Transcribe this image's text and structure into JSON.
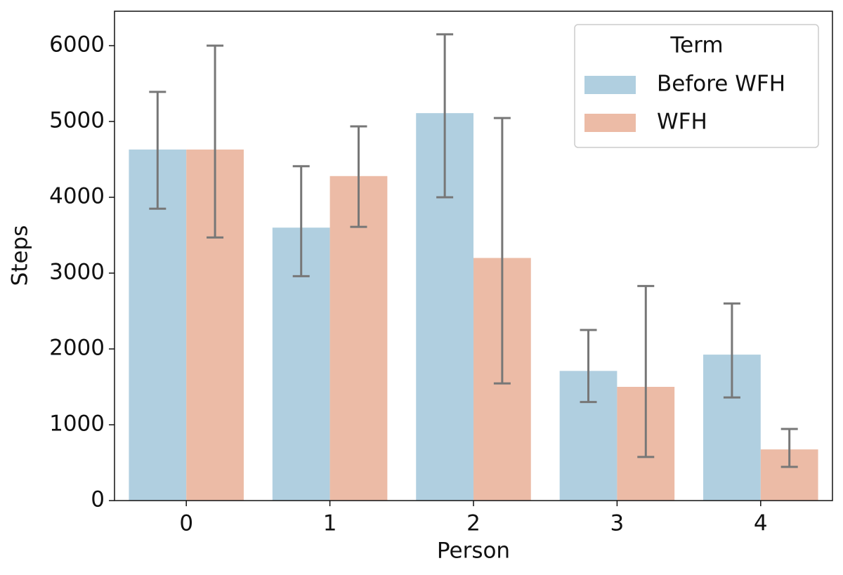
{
  "chart_data": {
    "type": "bar",
    "x_label": "Person",
    "y_label": "Steps",
    "categories": [
      "0",
      "1",
      "2",
      "3",
      "4"
    ],
    "series": [
      {
        "name": "Before WFH",
        "color": "#b0cfe0",
        "values": [
          4630,
          3600,
          5110,
          1710,
          1925
        ],
        "ci_low": [
          3850,
          2960,
          4000,
          1300,
          1360
        ],
        "ci_high": [
          5390,
          4410,
          6150,
          2250,
          2600
        ]
      },
      {
        "name": "WFH",
        "color": "#ecbba6",
        "values": [
          4630,
          4280,
          3200,
          1500,
          675
        ],
        "ci_low": [
          3470,
          3610,
          1545,
          575,
          445
        ],
        "ci_high": [
          6000,
          4935,
          5045,
          2830,
          945
        ]
      }
    ],
    "error_color": "#777777",
    "legend_title": "Term",
    "legend_position": "upper right",
    "ylim": [
      0,
      6454
    ],
    "yticks": [
      0,
      1000,
      2000,
      3000,
      4000,
      5000,
      6000
    ]
  }
}
